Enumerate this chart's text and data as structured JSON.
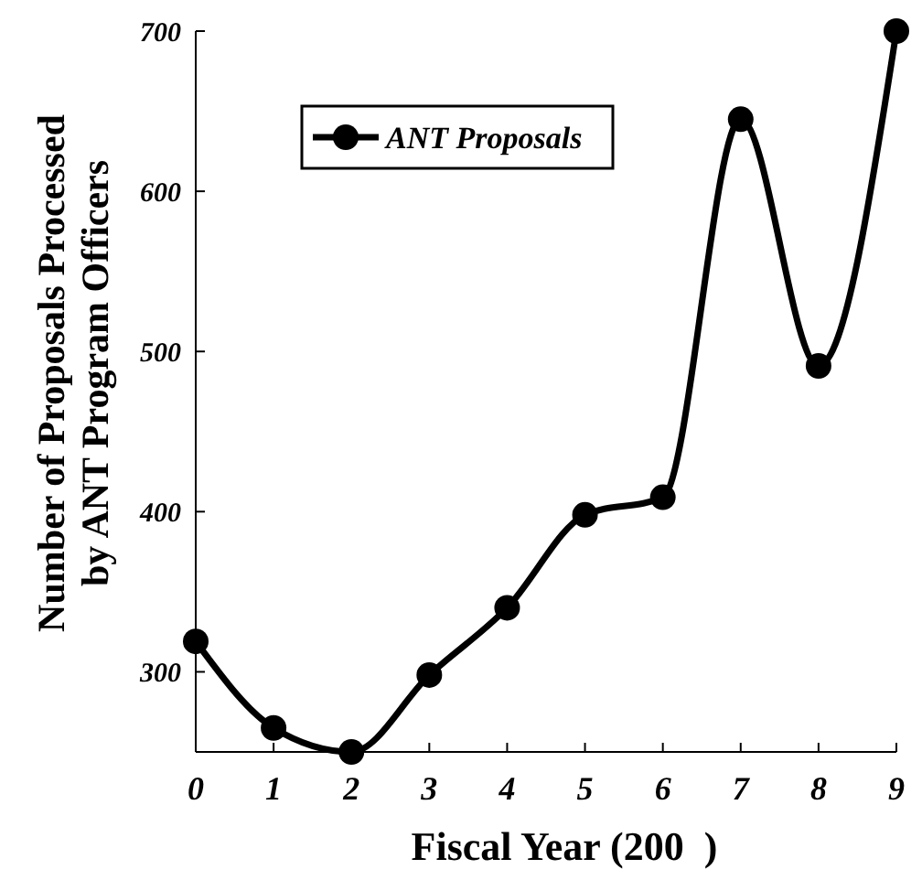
{
  "chart_data": {
    "type": "line",
    "xlabel": "Fiscal Year (200  )",
    "ylabel": "Number of Proposals Processed\nby ANT Program Officers",
    "x": [
      0,
      1,
      2,
      3,
      4,
      5,
      6,
      7,
      8,
      9
    ],
    "series": [
      {
        "name": "ANT Proposals",
        "color": "#000000",
        "values": [
          319,
          265,
          250,
          298,
          340,
          398,
          409,
          645,
          491,
          700
        ]
      }
    ],
    "xlim": [
      0,
      9
    ],
    "xticks": [
      0,
      1,
      2,
      3,
      4,
      5,
      6,
      7,
      8,
      9
    ],
    "ylim": [
      250,
      700
    ],
    "yticks": [
      300,
      400,
      500,
      600,
      700
    ],
    "legend": "top left",
    "marker": "circle",
    "line_style": "solid",
    "grid": false
  }
}
